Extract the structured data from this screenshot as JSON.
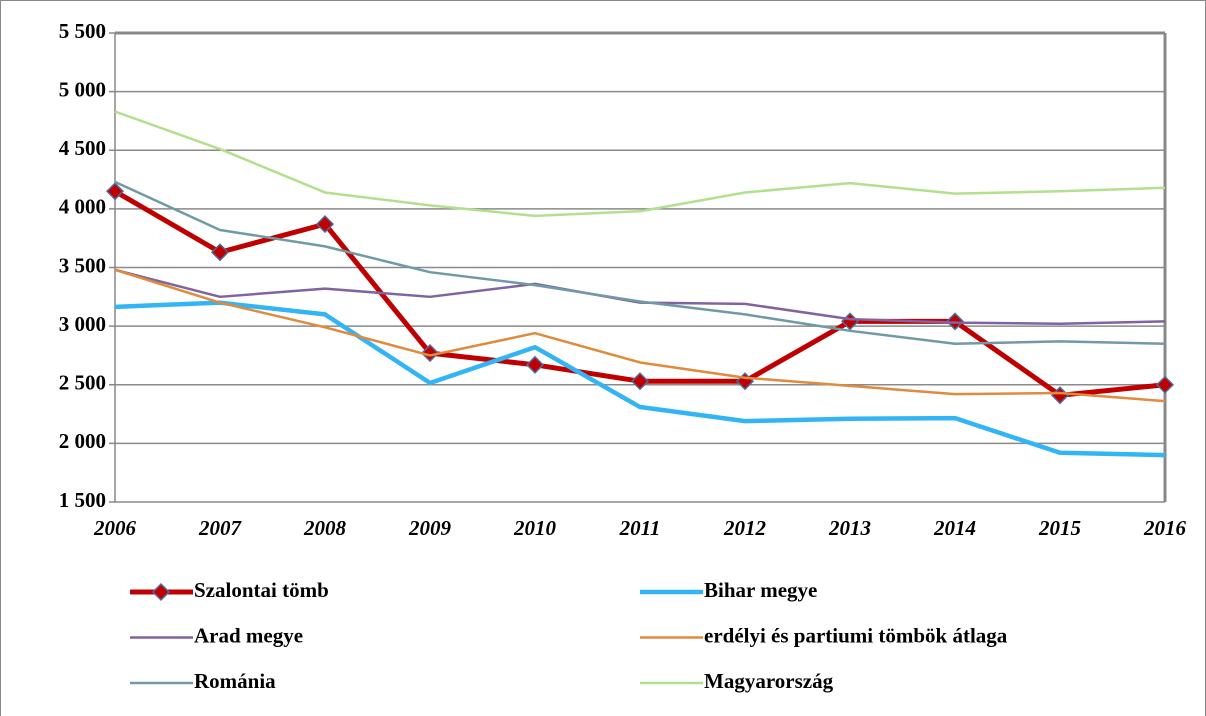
{
  "chart_data": {
    "type": "line",
    "categories": [
      "2006",
      "2007",
      "2008",
      "2009",
      "2010",
      "2011",
      "2012",
      "2013",
      "2014",
      "2015",
      "2016"
    ],
    "series": [
      {
        "name": "Szalontai tömb",
        "color": "#c00000",
        "marker": "diamond",
        "values": [
          4150,
          3630,
          3870,
          2770,
          2670,
          2530,
          2530,
          3040,
          3040,
          2410,
          2500
        ]
      },
      {
        "name": "Bihar megye",
        "color": "#33b5f5",
        "values": [
          3164,
          3200,
          3100,
          2515,
          2820,
          2310,
          2190,
          2210,
          2215,
          1920,
          1900
        ]
      },
      {
        "name": "Arad megye",
        "color": "#8064a2",
        "values": [
          3480,
          3250,
          3320,
          3250,
          3360,
          3200,
          3190,
          3060,
          3030,
          3020,
          3040
        ]
      },
      {
        "name": "erdélyi és partiumi tömbök átlaga",
        "color": "#e08a3c",
        "values": [
          3480,
          3200,
          2990,
          2750,
          2940,
          2690,
          2560,
          2490,
          2420,
          2430,
          2360
        ]
      },
      {
        "name": "Románia",
        "color": "#6f9aa6",
        "values": [
          4230,
          3820,
          3680,
          3460,
          3350,
          3210,
          3100,
          2960,
          2850,
          2870,
          2850
        ]
      },
      {
        "name": "Magyarország",
        "color": "#b3e08f",
        "values": [
          4830,
          4510,
          4140,
          4030,
          3940,
          3980,
          4140,
          4220,
          4130,
          4150,
          4180
        ]
      }
    ],
    "ylim": [
      1500,
      5500
    ],
    "yticks": [
      {
        "value": 1500,
        "label": "1 500"
      },
      {
        "value": 2000,
        "label": "2 000"
      },
      {
        "value": 2500,
        "label": "2 500"
      },
      {
        "value": 3000,
        "label": "3 000"
      },
      {
        "value": 3500,
        "label": "3 500"
      },
      {
        "value": 4000,
        "label": "4 000"
      },
      {
        "value": 4500,
        "label": "4 500"
      },
      {
        "value": 5000,
        "label": "5 000"
      },
      {
        "value": 5500,
        "label": "5 500"
      }
    ],
    "grid": true
  }
}
